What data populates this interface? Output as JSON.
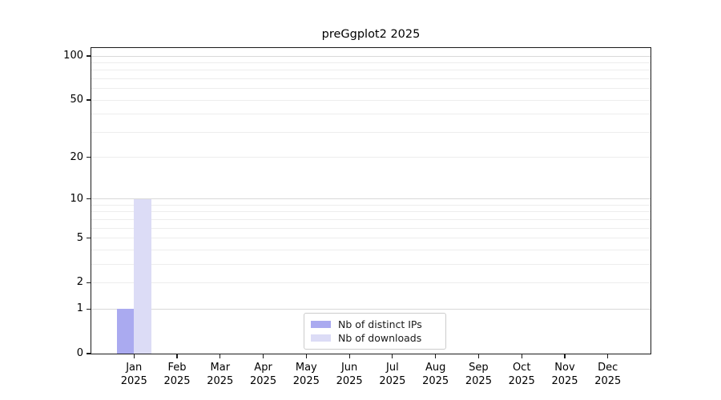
{
  "title": "preGgplot2 2025",
  "chart_data": {
    "type": "bar",
    "title": "preGgplot2 2025",
    "xlabel": "",
    "ylabel": "",
    "categories": [
      "Jan",
      "Feb",
      "Mar",
      "Apr",
      "May",
      "Jun",
      "Jul",
      "Aug",
      "Sep",
      "Oct",
      "Nov",
      "Dec"
    ],
    "category_year": "2025",
    "series": [
      {
        "name": "Nb of distinct IPs",
        "color": "#aaaaf0",
        "values": [
          1,
          0,
          0,
          0,
          0,
          0,
          0,
          0,
          0,
          0,
          0,
          0
        ]
      },
      {
        "name": "Nb of downloads",
        "color": "#dcdcf6",
        "values": [
          10,
          0,
          0,
          0,
          0,
          0,
          0,
          0,
          0,
          0,
          0,
          0
        ]
      }
    ],
    "yscale": "log1p",
    "ylim": [
      0,
      114
    ],
    "ytick_values": [
      0,
      1,
      2,
      5,
      10,
      20,
      50,
      100
    ],
    "ytick_labels": [
      "0",
      "1",
      "2",
      "5",
      "10",
      "20",
      "50",
      "100"
    ],
    "grid": {
      "orientation": "horizontal",
      "major_values": [
        1,
        10,
        100
      ],
      "minor_values": [
        2,
        3,
        4,
        5,
        6,
        7,
        8,
        9,
        20,
        30,
        40,
        50,
        60,
        70,
        80,
        90
      ],
      "major_color": "#d9d9d9",
      "minor_color": "#ededed"
    },
    "legend": {
      "position": "lower center",
      "entries": [
        "Nb of distinct IPs",
        "Nb of downloads"
      ]
    }
  },
  "colors": {
    "axis": "#1a1a1a",
    "text": "#000000",
    "background": "#ffffff",
    "legend_border": "#cccccc"
  }
}
